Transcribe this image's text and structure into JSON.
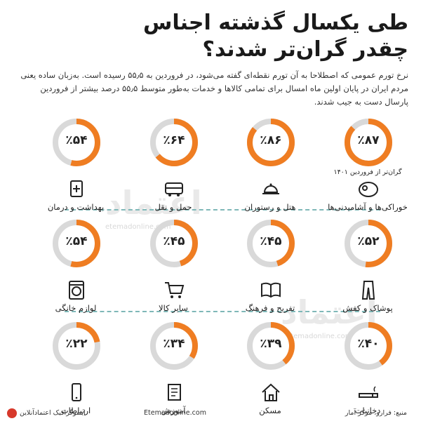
{
  "title": {
    "line1": "طی یکسال گذشته اجناس",
    "line2": "چقدر گران‌تر شدند؟"
  },
  "intro": "نرخ تورم عمومی که اصطلاحا به آن تورم نقطه‌ای گفته می‌شود، در فروردین به ۵۵٫۵ رسیده است. به‌زبان ساده یعنی مردم ایران در پایان اولین ماه امسال برای تمامی کالاها و خدمات به‌طور متوسط ۵۵٫۵ درصد بیشتر از فروردین پارسال دست به جیب شدند.",
  "watermarks": {
    "brand": "اعتماد",
    "site": "etemadonline.com"
  },
  "colors": {
    "accent": "#ef7d22",
    "track": "#d9d9d9",
    "divider": "#7fb8b8"
  },
  "chart_data": {
    "type": "donut-grid",
    "note_first": "گران‌تر از فروردین ۱۴۰۱",
    "items": [
      {
        "label": "خوراکی‌ها و آشامیدنی‌ها",
        "value": 87,
        "display": "٪۸۷",
        "icon": "meat-icon"
      },
      {
        "label": "هتل و رستوران",
        "value": 86,
        "display": "٪۸۶",
        "icon": "dish-icon"
      },
      {
        "label": "حمل و نقل",
        "value": 64,
        "display": "٪۶۴",
        "icon": "bus-icon"
      },
      {
        "label": "بهداشت و درمان",
        "value": 54,
        "display": "٪۵۴",
        "icon": "medical-icon"
      },
      {
        "label": "پوشاک و کفش",
        "value": 52,
        "display": "٪۵۲",
        "icon": "pants-icon"
      },
      {
        "label": "تفریح و فرهنگ",
        "value": 45,
        "display": "٪۴۵",
        "icon": "book-icon"
      },
      {
        "label": "سایر کالا",
        "value": 45,
        "display": "٪۴۵",
        "icon": "cart-icon"
      },
      {
        "label": "لوازم خانگی",
        "value": 54,
        "display": "٪۵۴",
        "icon": "washer-icon"
      },
      {
        "label": "دخانیات",
        "value": 40,
        "display": "٪۴۰",
        "icon": "cigarette-icon"
      },
      {
        "label": "مسکن",
        "value": 39,
        "display": "٪۳۹",
        "icon": "house-icon"
      },
      {
        "label": "آموزش",
        "value": 34,
        "display": "٪۳۴",
        "icon": "notebook-icon"
      },
      {
        "label": "ارتباطات",
        "value": 22,
        "display": "٪۲۲",
        "icon": "phone-icon"
      }
    ]
  },
  "footer": {
    "source": "منبع: فرارو، مرکز آمار",
    "site": "Etemadonline.com",
    "brand": "اینفوگرافیک اعتمادآنلاین"
  }
}
